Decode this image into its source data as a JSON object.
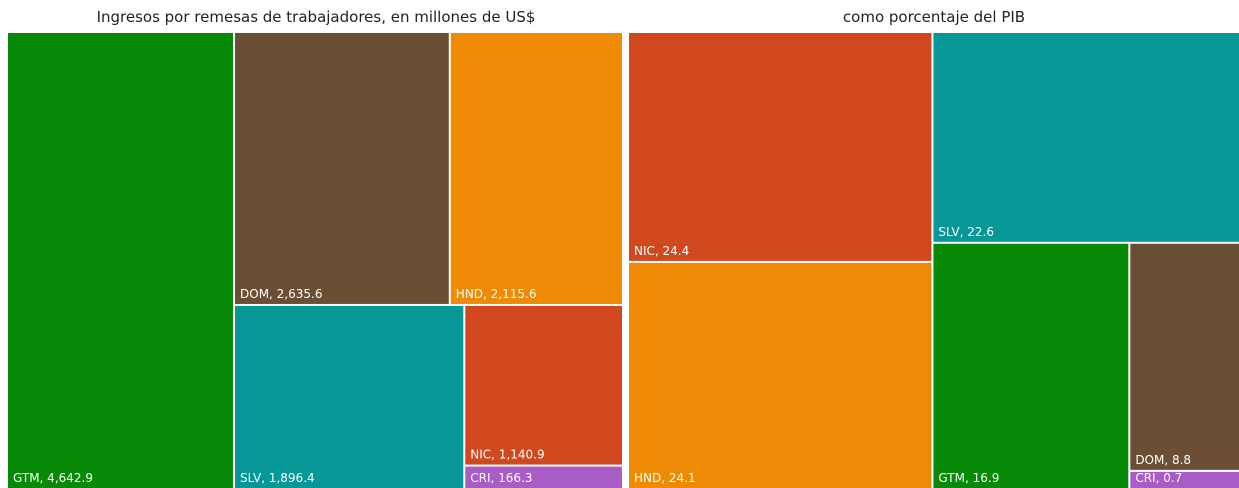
{
  "chart_data": [
    {
      "type": "treemap",
      "title": "Ingresos por remesas de trabajadores, en millones de US$",
      "values": [
        4642.9,
        2635.6,
        2115.6,
        1896.4,
        1140.9,
        166.3
      ],
      "value_labels": [
        "GTM, 4,642.9",
        "DOM, 2,635.6",
        "HND, 2,115.6",
        "SLV, 1,896.4",
        "NIC, 1,140.9",
        "CRI, 166.3"
      ],
      "colors": [
        "#078a07",
        "#6a4f35",
        "#ef8a04",
        "#079797",
        "#d0491e",
        "#a95cc6"
      ]
    },
    {
      "type": "treemap",
      "title": "como porcentaje del PIB",
      "values": [
        24.4,
        24.1,
        22.6,
        16.9,
        8.8,
        0.7
      ],
      "value_labels": [
        "NIC, 24.4",
        "HND, 24.1",
        "SLV, 22.6",
        "GTM, 16.9",
        "DOM, 8.8",
        "CRI, 0.7"
      ],
      "colors": [
        "#d0491e",
        "#ef8a04",
        "#079797",
        "#078a07",
        "#6a4f35",
        "#a95cc6"
      ]
    }
  ]
}
